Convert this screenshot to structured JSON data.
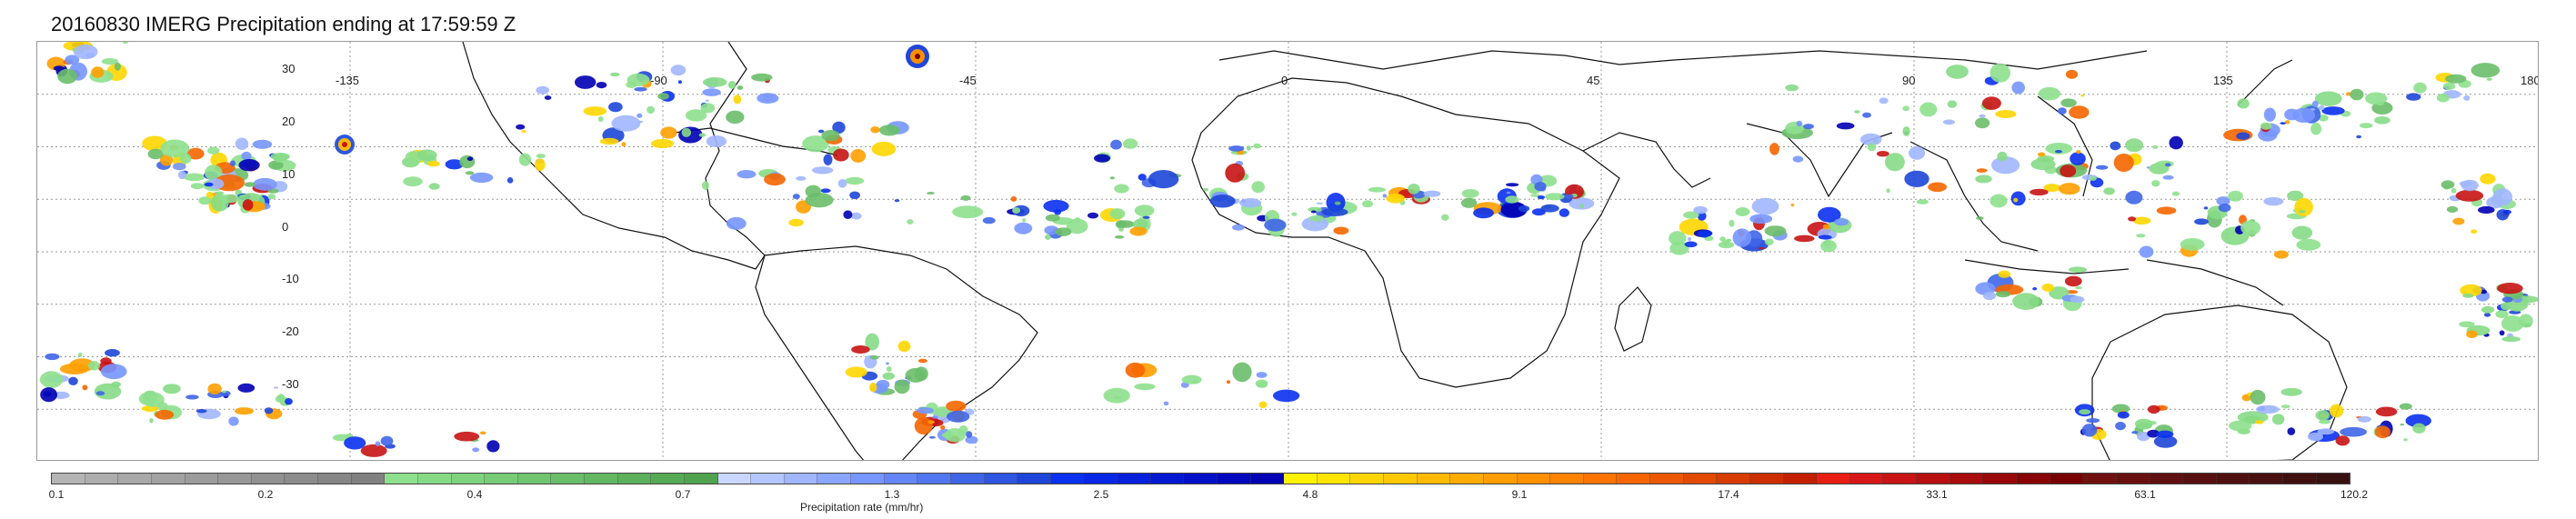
{
  "title": "20160830 IMERG Precipitation ending at 17:59:59 Z",
  "map": {
    "projection": "equirectangular",
    "lon_range": [
      -180,
      180
    ],
    "lat_range": [
      -40,
      40
    ],
    "gridlines": "dotted",
    "lat_labels": [
      "30",
      "20",
      "10",
      "0",
      "-10",
      "-20",
      "-30"
    ],
    "lon_labels": [
      "-135",
      "-90",
      "-45",
      "0",
      "45",
      "90",
      "135",
      "180"
    ]
  },
  "colorbar": {
    "label": "Precipitation rate (mm/hr)",
    "tick_labels": [
      "0.1",
      "0.2",
      "0.4",
      "0.7",
      "1.3",
      "2.5",
      "4.8",
      "9.1",
      "17.4",
      "33.1",
      "63.1",
      "120.2"
    ],
    "colors": [
      "#b4b4b4",
      "#adadad",
      "#a8a8a8",
      "#a2a2a2",
      "#9c9c9c",
      "#979797",
      "#919191",
      "#8c8c8c",
      "#868686",
      "#818181",
      "#8ee08e",
      "#86da86",
      "#7fd37f",
      "#78cc78",
      "#71c571",
      "#6abe6a",
      "#63b763",
      "#5cb05c",
      "#56aa56",
      "#50a450",
      "#c9d6ff",
      "#b4c6ff",
      "#a0b6ff",
      "#8ba6ff",
      "#7796ff",
      "#6486f8",
      "#5276f0",
      "#4066e8",
      "#2e56e0",
      "#1e46d8",
      "#0a30f0",
      "#0828e6",
      "#0620dc",
      "#0418d2",
      "#0210c8",
      "#0008be",
      "#0000b4",
      "#fff200",
      "#ffe400",
      "#ffd600",
      "#ffc800",
      "#ffba00",
      "#ffac00",
      "#ff9e00",
      "#ff9000",
      "#ff8200",
      "#ff7400",
      "#f56600",
      "#eb5800",
      "#e14a00",
      "#d73c00",
      "#cd2e00",
      "#c32000",
      "#e81e14",
      "#d81818",
      "#c81414",
      "#b81010",
      "#a80c0c",
      "#980808",
      "#880404",
      "#780000",
      "#701010",
      "#681010",
      "#601010",
      "#581010",
      "#501010",
      "#481010",
      "#401010",
      "#381010"
    ]
  },
  "legend_bins_mm_hr": [
    0.1,
    0.2,
    0.4,
    0.7,
    1.3,
    2.5,
    4.8,
    9.1,
    17.4,
    33.1,
    63.1,
    120.2
  ]
}
